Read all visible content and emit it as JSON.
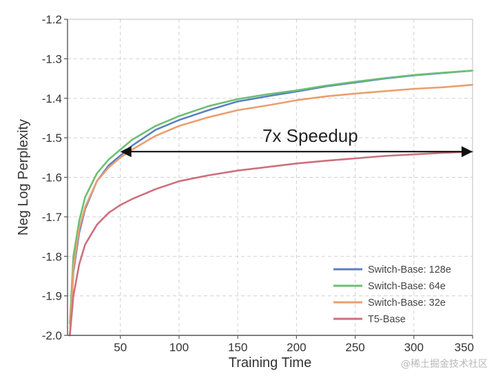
{
  "chart_data": {
    "type": "line",
    "xlabel": "Training Time",
    "ylabel": "Neg Log Perplexity",
    "xlim": [
      5,
      350
    ],
    "ylim": [
      -2.0,
      -1.2
    ],
    "x_ticks": [
      50,
      100,
      150,
      200,
      250,
      300,
      350
    ],
    "y_ticks": [
      -1.2,
      -1.3,
      -1.4,
      -1.5,
      -1.6,
      -1.7,
      -1.8,
      -1.9,
      -2.0
    ],
    "x_tick_labels": [
      "50",
      "100",
      "150",
      "200",
      "250",
      "300",
      "350"
    ],
    "y_tick_labels": [
      "-1.2",
      "-1.3",
      "-1.4",
      "-1.5",
      "-1.6",
      "-1.7",
      "-1.8",
      "-1.9",
      "-2.0"
    ],
    "grid": true,
    "legend_position": "bottom-right",
    "annotation": {
      "text": "7x Speedup",
      "arrow_from": {
        "x": 50,
        "y": -1.535
      },
      "arrow_to": {
        "x": 350,
        "y": -1.535
      }
    },
    "series": [
      {
        "name": "Switch-Base: 128e",
        "color": "#5b7fc0",
        "x": [
          7,
          10,
          15,
          20,
          30,
          40,
          50,
          60,
          80,
          100,
          125,
          150,
          175,
          200,
          225,
          250,
          275,
          300,
          325,
          350
        ],
        "y": [
          -2.0,
          -1.84,
          -1.74,
          -1.68,
          -1.61,
          -1.57,
          -1.545,
          -1.52,
          -1.48,
          -1.455,
          -1.43,
          -1.408,
          -1.395,
          -1.383,
          -1.37,
          -1.36,
          -1.35,
          -1.342,
          -1.336,
          -1.33
        ]
      },
      {
        "name": "Switch-Base: 64e",
        "color": "#6bbf72",
        "x": [
          7,
          10,
          15,
          20,
          30,
          40,
          50,
          60,
          80,
          100,
          125,
          150,
          175,
          200,
          225,
          250,
          275,
          300,
          325,
          350
        ],
        "y": [
          -1.97,
          -1.8,
          -1.71,
          -1.65,
          -1.59,
          -1.555,
          -1.53,
          -1.505,
          -1.47,
          -1.445,
          -1.42,
          -1.402,
          -1.39,
          -1.38,
          -1.368,
          -1.358,
          -1.349,
          -1.341,
          -1.335,
          -1.33
        ]
      },
      {
        "name": "Switch-Base: 32e",
        "color": "#ec9e6e",
        "x": [
          7,
          10,
          15,
          20,
          30,
          40,
          50,
          60,
          80,
          100,
          125,
          150,
          175,
          200,
          225,
          250,
          275,
          300,
          325,
          350
        ],
        "y": [
          -2.0,
          -1.83,
          -1.73,
          -1.675,
          -1.61,
          -1.575,
          -1.55,
          -1.53,
          -1.495,
          -1.47,
          -1.448,
          -1.43,
          -1.418,
          -1.405,
          -1.395,
          -1.388,
          -1.382,
          -1.376,
          -1.372,
          -1.366
        ]
      },
      {
        "name": "T5-Base",
        "color": "#cd6f7c",
        "x": [
          7,
          10,
          15,
          20,
          30,
          40,
          50,
          60,
          80,
          100,
          125,
          150,
          175,
          200,
          225,
          250,
          275,
          300,
          325,
          350
        ],
        "y": [
          -2.0,
          -1.9,
          -1.82,
          -1.77,
          -1.72,
          -1.69,
          -1.67,
          -1.655,
          -1.63,
          -1.61,
          -1.595,
          -1.583,
          -1.574,
          -1.565,
          -1.558,
          -1.552,
          -1.546,
          -1.542,
          -1.538,
          -1.535
        ]
      }
    ]
  },
  "watermark": "@稀土掘金技术社区"
}
